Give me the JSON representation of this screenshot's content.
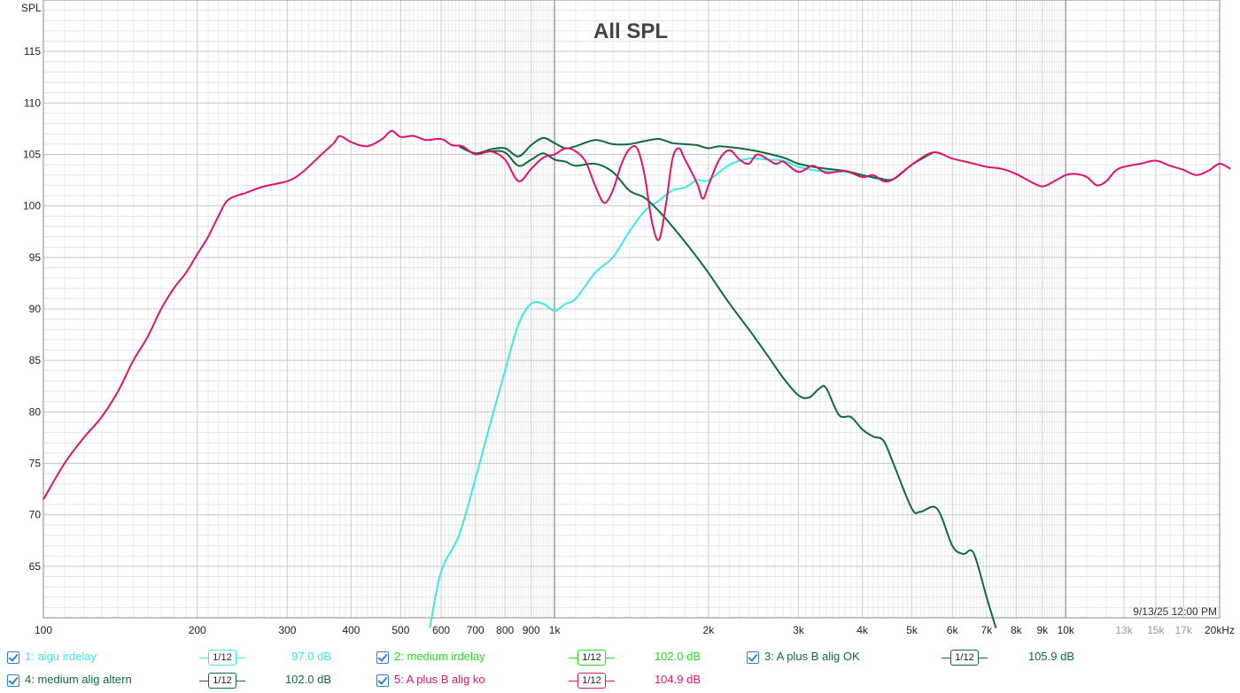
{
  "chart_data": {
    "type": "line",
    "title": "All SPL",
    "ylabel": "SPL",
    "xlabel": "",
    "x_scale": "log",
    "xlim": [
      100,
      20000
    ],
    "ylim": [
      60,
      120
    ],
    "grid": true,
    "y_ticks": [
      65,
      70,
      75,
      80,
      85,
      90,
      95,
      100,
      105,
      110,
      115
    ],
    "x_ticks": [
      {
        "v": 100,
        "label": "100",
        "muted": false
      },
      {
        "v": 200,
        "label": "200",
        "muted": false
      },
      {
        "v": 300,
        "label": "300",
        "muted": false
      },
      {
        "v": 400,
        "label": "400",
        "muted": false
      },
      {
        "v": 500,
        "label": "500",
        "muted": false
      },
      {
        "v": 600,
        "label": "600",
        "muted": false
      },
      {
        "v": 700,
        "label": "700",
        "muted": false
      },
      {
        "v": 800,
        "label": "800",
        "muted": false
      },
      {
        "v": 900,
        "label": "900",
        "muted": false
      },
      {
        "v": 1000,
        "label": "1k",
        "muted": false
      },
      {
        "v": 2000,
        "label": "2k",
        "muted": false
      },
      {
        "v": 3000,
        "label": "3k",
        "muted": false
      },
      {
        "v": 4000,
        "label": "4k",
        "muted": false
      },
      {
        "v": 5000,
        "label": "5k",
        "muted": false
      },
      {
        "v": 6000,
        "label": "6k",
        "muted": false
      },
      {
        "v": 7000,
        "label": "7k",
        "muted": false
      },
      {
        "v": 8000,
        "label": "8k",
        "muted": false
      },
      {
        "v": 9000,
        "label": "9k",
        "muted": false
      },
      {
        "v": 10000,
        "label": "10k",
        "muted": false
      },
      {
        "v": 13000,
        "label": "13k",
        "muted": true
      },
      {
        "v": 15000,
        "label": "15k",
        "muted": true
      },
      {
        "v": 17000,
        "label": "17k",
        "muted": true
      },
      {
        "v": 20000,
        "label": "20kHz",
        "muted": false
      }
    ],
    "timestamp": "9/13/25 12:00 PM",
    "series": [
      {
        "name": "1: aigu irdelay",
        "color": "#3ee8e8",
        "smoothing": "1/12",
        "level": "97.0 dB",
        "points": [
          [
            570,
            59
          ],
          [
            600,
            64.5
          ],
          [
            650,
            68
          ],
          [
            700,
            73.5
          ],
          [
            750,
            79
          ],
          [
            800,
            84
          ],
          [
            850,
            88.5
          ],
          [
            900,
            90.5
          ],
          [
            950,
            90.5
          ],
          [
            1000,
            89.8
          ],
          [
            1050,
            90.5
          ],
          [
            1100,
            91
          ],
          [
            1200,
            93.5
          ],
          [
            1300,
            95
          ],
          [
            1400,
            97.5
          ],
          [
            1500,
            99.5
          ],
          [
            1600,
            100.5
          ],
          [
            1700,
            101.5
          ],
          [
            1800,
            101.8
          ],
          [
            1900,
            102.5
          ],
          [
            2000,
            102.5
          ],
          [
            2200,
            104
          ],
          [
            2400,
            104.6
          ],
          [
            2600,
            104.5
          ],
          [
            2800,
            104.4
          ],
          [
            3000,
            103.8
          ],
          [
            3300,
            103.4
          ],
          [
            3700,
            103.3
          ],
          [
            4000,
            103
          ],
          [
            4300,
            102.6
          ],
          [
            4600,
            102.6
          ],
          [
            5000,
            104
          ],
          [
            5500,
            105.2
          ]
        ]
      },
      {
        "name": "2: medium irdelay",
        "color": "#22dd22",
        "smoothing": "1/12",
        "level": "102.0 dB",
        "points": []
      },
      {
        "name": "3: A plus B alig OK",
        "color": "#0f6b3a",
        "smoothing": "1/12",
        "level": "105.9 dB",
        "points": [
          [
            650,
            105.8
          ],
          [
            700,
            105.1
          ],
          [
            750,
            105.5
          ],
          [
            800,
            105.6
          ],
          [
            850,
            104.8
          ],
          [
            900,
            105.9
          ],
          [
            950,
            106.6
          ],
          [
            1000,
            106.1
          ],
          [
            1050,
            105.6
          ],
          [
            1100,
            105.8
          ],
          [
            1200,
            106.4
          ],
          [
            1300,
            106
          ],
          [
            1400,
            106
          ],
          [
            1500,
            106.3
          ],
          [
            1600,
            106.5
          ],
          [
            1700,
            106.1
          ],
          [
            1800,
            106
          ],
          [
            1900,
            105.9
          ],
          [
            2000,
            105.6
          ],
          [
            2100,
            105.8
          ],
          [
            2300,
            105.6
          ],
          [
            2500,
            105.3
          ],
          [
            2800,
            104.7
          ],
          [
            3000,
            104.1
          ],
          [
            3300,
            103.7
          ],
          [
            3700,
            103.4
          ],
          [
            4000,
            103
          ],
          [
            4300,
            102.7
          ],
          [
            4600,
            102.6
          ],
          [
            5000,
            104
          ],
          [
            5500,
            105.2
          ]
        ]
      },
      {
        "name": "4: medium alig altern",
        "color": "#0f6b3a",
        "smoothing": "1/12",
        "level": "102.0 dB",
        "points": [
          [
            650,
            105.8
          ],
          [
            700,
            105.1
          ],
          [
            750,
            105.3
          ],
          [
            800,
            105.2
          ],
          [
            850,
            103.9
          ],
          [
            900,
            104.5
          ],
          [
            950,
            105.1
          ],
          [
            1000,
            104.5
          ],
          [
            1050,
            104.3
          ],
          [
            1100,
            103.9
          ],
          [
            1200,
            104.1
          ],
          [
            1300,
            103.3
          ],
          [
            1400,
            101.5
          ],
          [
            1500,
            100.8
          ],
          [
            1600,
            99.5
          ],
          [
            1700,
            98
          ],
          [
            1800,
            96.5
          ],
          [
            1900,
            95
          ],
          [
            2000,
            93.5
          ],
          [
            2200,
            90.5
          ],
          [
            2400,
            88
          ],
          [
            2600,
            85.6
          ],
          [
            2800,
            83.3
          ],
          [
            3000,
            81.6
          ],
          [
            3150,
            81.4
          ],
          [
            3300,
            82.3
          ],
          [
            3400,
            82.3
          ],
          [
            3600,
            79.7
          ],
          [
            3800,
            79.5
          ],
          [
            4000,
            78.3
          ],
          [
            4200,
            77.6
          ],
          [
            4400,
            77.2
          ],
          [
            4600,
            75
          ],
          [
            5000,
            70.6
          ],
          [
            5200,
            70.3
          ],
          [
            5600,
            70.6
          ],
          [
            6000,
            67
          ],
          [
            6300,
            66.2
          ],
          [
            6600,
            66.3
          ],
          [
            7000,
            62
          ],
          [
            7300,
            59
          ]
        ]
      },
      {
        "name": "5: A plus B alig ko",
        "color": "#e0136a",
        "smoothing": "1/12",
        "level": "104.9 dB",
        "points": [
          [
            100,
            71.5
          ],
          [
            110,
            75
          ],
          [
            120,
            77.5
          ],
          [
            130,
            79.5
          ],
          [
            140,
            82
          ],
          [
            150,
            85
          ],
          [
            160,
            87.3
          ],
          [
            170,
            90
          ],
          [
            180,
            92
          ],
          [
            190,
            93.5
          ],
          [
            200,
            95.3
          ],
          [
            210,
            97
          ],
          [
            220,
            99
          ],
          [
            230,
            100.6
          ],
          [
            250,
            101.3
          ],
          [
            270,
            101.9
          ],
          [
            300,
            102.4
          ],
          [
            320,
            103.2
          ],
          [
            350,
            105
          ],
          [
            370,
            106.1
          ],
          [
            380,
            106.8
          ],
          [
            400,
            106.2
          ],
          [
            430,
            105.8
          ],
          [
            460,
            106.5
          ],
          [
            480,
            107.3
          ],
          [
            500,
            106.7
          ],
          [
            530,
            106.8
          ],
          [
            560,
            106.4
          ],
          [
            600,
            106.5
          ],
          [
            630,
            105.9
          ],
          [
            660,
            105.8
          ],
          [
            700,
            105
          ],
          [
            750,
            105.3
          ],
          [
            800,
            104.5
          ],
          [
            850,
            102.4
          ],
          [
            900,
            103.6
          ],
          [
            950,
            104.7
          ],
          [
            1000,
            105
          ],
          [
            1050,
            105.6
          ],
          [
            1100,
            105.3
          ],
          [
            1150,
            104.3
          ],
          [
            1200,
            102
          ],
          [
            1250,
            100.3
          ],
          [
            1300,
            101.5
          ],
          [
            1350,
            104
          ],
          [
            1400,
            105.5
          ],
          [
            1450,
            105.6
          ],
          [
            1500,
            103
          ],
          [
            1550,
            98.5
          ],
          [
            1600,
            96.7
          ],
          [
            1650,
            100
          ],
          [
            1700,
            104.5
          ],
          [
            1750,
            105.6
          ],
          [
            1800,
            104.5
          ],
          [
            1900,
            102.2
          ],
          [
            1950,
            100.7
          ],
          [
            2000,
            102
          ],
          [
            2100,
            104.5
          ],
          [
            2200,
            105.4
          ],
          [
            2300,
            104.5
          ],
          [
            2400,
            104.1
          ],
          [
            2500,
            105
          ],
          [
            2700,
            104.1
          ],
          [
            2800,
            104.3
          ],
          [
            3000,
            103.3
          ],
          [
            3200,
            103.9
          ],
          [
            3400,
            103.2
          ],
          [
            3700,
            103.4
          ],
          [
            4000,
            102.8
          ],
          [
            4200,
            103
          ],
          [
            4400,
            102.4
          ],
          [
            4600,
            102.6
          ],
          [
            5000,
            104
          ],
          [
            5500,
            105.2
          ],
          [
            6000,
            104.6
          ],
          [
            6500,
            104.2
          ],
          [
            7000,
            103.8
          ],
          [
            7500,
            103.6
          ],
          [
            8000,
            103.1
          ],
          [
            8500,
            102.4
          ],
          [
            9000,
            101.9
          ],
          [
            9500,
            102.4
          ],
          [
            10000,
            103
          ],
          [
            10500,
            103.1
          ],
          [
            11000,
            102.8
          ],
          [
            11500,
            102
          ],
          [
            12000,
            102.4
          ],
          [
            12500,
            103.4
          ],
          [
            13000,
            103.8
          ],
          [
            14000,
            104.1
          ],
          [
            15000,
            104.4
          ],
          [
            16000,
            103.9
          ],
          [
            17000,
            103.5
          ],
          [
            18000,
            103
          ],
          [
            19000,
            103.4
          ],
          [
            20000,
            104.1
          ],
          [
            21000,
            103.6
          ]
        ]
      }
    ]
  }
}
